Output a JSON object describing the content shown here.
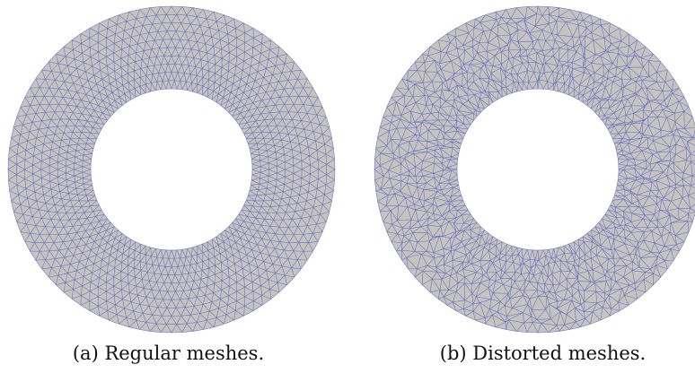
{
  "figure": {
    "panels": [
      {
        "id": "a",
        "caption": "(a) Regular meshes.",
        "mesh_style": "regular"
      },
      {
        "id": "b",
        "caption": "(b) Distorted meshes.",
        "mesh_style": "distorted"
      }
    ],
    "colors": {
      "fill": "#c6c4bf",
      "edge": "#5a5cc8",
      "background": "#ffffff"
    }
  }
}
